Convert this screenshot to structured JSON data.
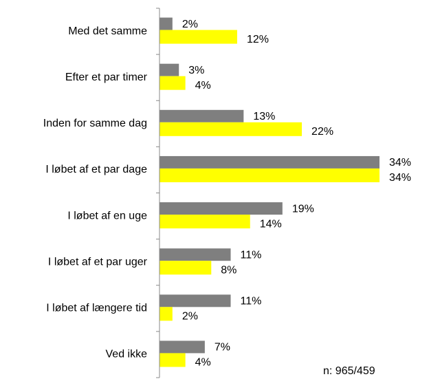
{
  "chart_data": {
    "type": "barh",
    "categories": [
      "Med det samme",
      "Efter et par timer",
      "Inden for samme dag",
      "I løbet af et par dage",
      "I løbet af en uge",
      "I løbet af et par uger",
      "I løbet af længere tid",
      "Ved ikke"
    ],
    "series": [
      {
        "color": "#7f7f7f",
        "values": [
          2,
          3,
          13,
          34,
          19,
          11,
          11,
          7
        ],
        "value_labels": [
          "2%",
          "3%",
          "13%",
          "34%",
          "19%",
          "11%",
          "11%",
          "7%"
        ]
      },
      {
        "color": "#ffff00",
        "values": [
          12,
          4,
          22,
          34,
          14,
          8,
          2,
          4
        ],
        "value_labels": [
          "12%",
          "4%",
          "22%",
          "34%",
          "14%",
          "8%",
          "2%",
          "4%"
        ]
      }
    ],
    "xlim": [
      0,
      34
    ],
    "annotation": "n: 965/459"
  }
}
